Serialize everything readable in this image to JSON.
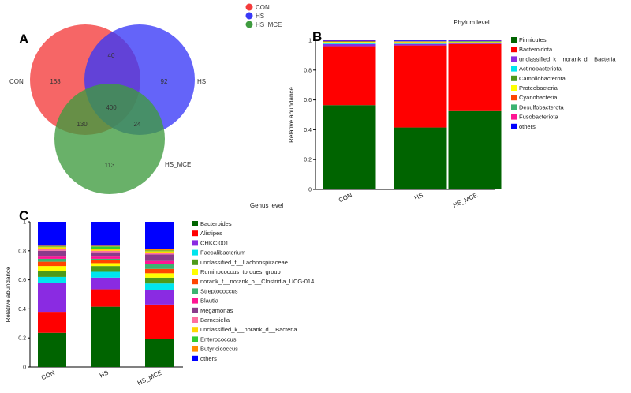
{
  "panel_letters": {
    "a": "A",
    "b": "B",
    "c": "C"
  },
  "colors": {
    "con": "#f43b3b",
    "hs": "#3939f7",
    "hs_mce": "#3f9b3f"
  },
  "chart_data": [
    {
      "type": "venn",
      "legend": [
        "CON",
        "HS",
        "HS_MCE"
      ],
      "sets": [
        "CON",
        "HS",
        "HS_MCE"
      ],
      "regions": {
        "CON_only": "168",
        "HS_only": "92",
        "HS_MCE_only": "113",
        "CON_HS": "40",
        "CON_HS_MCE": "130",
        "HS_HS_MCE": "24",
        "all": "400"
      }
    },
    {
      "type": "bar",
      "stacked": true,
      "title": "Phylum level",
      "xlabel": "",
      "ylabel": "Relative abundance",
      "ylim": [
        0,
        1
      ],
      "yticks": [
        "0",
        "0.2",
        "0.4",
        "0.6",
        "0.8",
        "1"
      ],
      "categories": [
        "CON",
        "HS",
        "HS_MCE"
      ],
      "series": [
        {
          "name": "Firmicutes",
          "color": "#006400",
          "values": [
            0.565,
            0.415,
            0.525
          ]
        },
        {
          "name": "Bacteroidota",
          "color": "#ff0000",
          "values": [
            0.395,
            0.55,
            0.45
          ]
        },
        {
          "name": "unclassified_k__norank_d__Bacteria",
          "color": "#8a2be2",
          "values": [
            0.015,
            0.01,
            0.005
          ]
        },
        {
          "name": "Actinobacteriota",
          "color": "#00e5ee",
          "values": [
            0.004,
            0.003,
            0.002
          ]
        },
        {
          "name": "Campilobacterota",
          "color": "#4d9a1a",
          "values": [
            0.006,
            0.005,
            0.004
          ]
        },
        {
          "name": "Proteobacteria",
          "color": "#ffff00",
          "values": [
            0.004,
            0.005,
            0.003
          ]
        },
        {
          "name": "Cyanobacteria",
          "color": "#ff4500",
          "values": [
            0.003,
            0.003,
            0.002
          ]
        },
        {
          "name": "Desulfobacterota",
          "color": "#3cb371",
          "values": [
            0.003,
            0.003,
            0.004
          ]
        },
        {
          "name": "Fusobacteriota",
          "color": "#ff1493",
          "values": [
            0.002,
            0.002,
            0.002
          ]
        },
        {
          "name": "others",
          "color": "#0000ff",
          "values": [
            0.003,
            0.004,
            0.003
          ]
        }
      ]
    },
    {
      "type": "bar",
      "stacked": true,
      "title": "Genus level",
      "xlabel": "",
      "ylabel": "Relative abundance",
      "ylim": [
        0,
        1
      ],
      "yticks": [
        "0",
        "0.2",
        "0.4",
        "0.6",
        "0.8",
        "1"
      ],
      "categories": [
        "CON",
        "HS",
        "HS_MCE"
      ],
      "series": [
        {
          "name": "Bacteroides",
          "color": "#006400",
          "values": [
            0.235,
            0.415,
            0.195
          ]
        },
        {
          "name": "Alistipes",
          "color": "#ff0000",
          "values": [
            0.145,
            0.12,
            0.235
          ]
        },
        {
          "name": "CHKCI001",
          "color": "#8a2be2",
          "values": [
            0.2,
            0.08,
            0.1
          ]
        },
        {
          "name": "Faecalibacterium",
          "color": "#00e5ee",
          "values": [
            0.04,
            0.04,
            0.045
          ]
        },
        {
          "name": "unclassified_f__Lachnospiraceae",
          "color": "#4d9a1a",
          "values": [
            0.04,
            0.04,
            0.04
          ]
        },
        {
          "name": "Ruminococcus_torques_group",
          "color": "#ffff00",
          "values": [
            0.035,
            0.02,
            0.03
          ]
        },
        {
          "name": "norank_f__norank_o__Clostridia_UCG-014",
          "color": "#ff4500",
          "values": [
            0.03,
            0.02,
            0.03
          ]
        },
        {
          "name": "Streptococcus",
          "color": "#3cb371",
          "values": [
            0.02,
            0.01,
            0.035
          ]
        },
        {
          "name": "Blautia",
          "color": "#ff1493",
          "values": [
            0.015,
            0.015,
            0.02
          ]
        },
        {
          "name": "Megamonas",
          "color": "#8b3a8b",
          "values": [
            0.04,
            0.03,
            0.045
          ]
        },
        {
          "name": "Barnesiella",
          "color": "#ff6fa0",
          "values": [
            0.01,
            0.01,
            0.01
          ]
        },
        {
          "name": "unclassified_k__norank_d__Bacteria",
          "color": "#ffd700",
          "values": [
            0.015,
            0.01,
            0.012
          ]
        },
        {
          "name": "Enterococcus",
          "color": "#32cd32",
          "values": [
            0.005,
            0.02,
            0.005
          ]
        },
        {
          "name": "Butyricicoccus",
          "color": "#ff8c00",
          "values": [
            0.005,
            0.005,
            0.008
          ]
        },
        {
          "name": "others",
          "color": "#0000ff",
          "values": [
            0.165,
            0.165,
            0.19
          ]
        }
      ]
    }
  ]
}
